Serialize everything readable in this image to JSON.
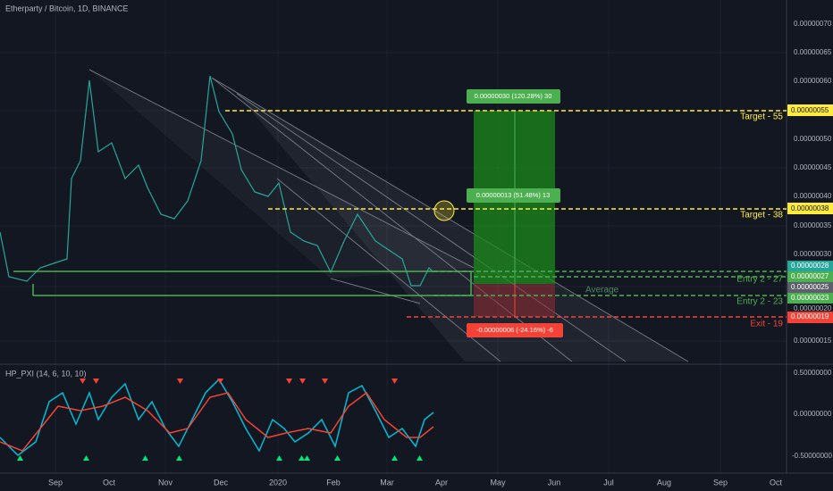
{
  "header": {
    "title": "Etherparty / Bitcoin, 1D, BINANCE"
  },
  "price_axis": {
    "labels": [
      "0.00000070",
      "0.00000065",
      "0.00000060",
      "0.00000050",
      "0.00000045",
      "0.00000040",
      "0.00000035",
      "0.00000030",
      "0.00000020",
      "0.00000015"
    ],
    "highlighted": [
      "0.00000055",
      "0.00000038",
      "0.00000028",
      "0.00000027",
      "0.00000025",
      "0.00000023",
      "0.00000019"
    ]
  },
  "annotations": {
    "target_55": "Target  - 55",
    "target_38": "Target  - 38",
    "entry_27": "Entry 2 - 27",
    "entry_23": "Entry 2 - 23",
    "exit_19": "Exit - 19",
    "average": "Average"
  },
  "position": {
    "profit_far": "0.00000030 (120.28%) 30",
    "profit_near": "0.00000013 (51.48%) 13",
    "loss": "-0.00000006 (-24.16%) -6"
  },
  "indicator": {
    "title": "HP_PXI (14, 6, 10, 10)",
    "axis": [
      "0.50000000",
      "0.00000000",
      "-0.50000000"
    ]
  },
  "time_axis": [
    "Sep",
    "Oct",
    "Nov",
    "Dec",
    "2020",
    "Feb",
    "Mar",
    "Apr",
    "May",
    "Jun",
    "Jul",
    "Aug",
    "Sep",
    "Oct"
  ]
}
